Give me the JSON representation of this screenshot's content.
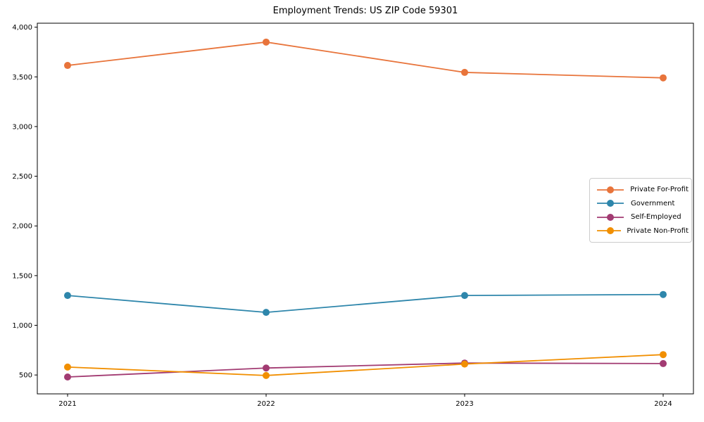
{
  "page": {
    "title": "Employment Trends: US ZIP Code 59301"
  },
  "chart_data": {
    "type": "line",
    "title": "Employment Trends: US ZIP Code 59301",
    "xlabel": "",
    "ylabel": "",
    "categories": [
      "2021",
      "2022",
      "2023",
      "2024"
    ],
    "series": [
      {
        "name": "Private For-Profit",
        "color": "#E8743B",
        "values": [
          3615,
          3850,
          3545,
          3490
        ]
      },
      {
        "name": "Government",
        "color": "#2E86AB",
        "values": [
          1300,
          1130,
          1300,
          1310
        ]
      },
      {
        "name": "Self-Employed",
        "color": "#A23B72",
        "values": [
          480,
          570,
          620,
          615
        ]
      },
      {
        "name": "Private Non-Profit",
        "color": "#F18F01",
        "values": [
          580,
          495,
          610,
          705
        ]
      }
    ],
    "ylim": [
      310,
      4040
    ],
    "yticks": [
      500,
      1000,
      1500,
      2000,
      2500,
      3000,
      3500,
      4000
    ],
    "ytick_labels": [
      "500",
      "1,000",
      "1,500",
      "2,000",
      "2,500",
      "3,000",
      "3,500",
      "4,000"
    ],
    "grid": false,
    "legend_position": "center right",
    "marker": "circle",
    "line_width": 1.8,
    "marker_radius": 5,
    "frame_color": "#000000",
    "background_color": "#ffffff"
  }
}
